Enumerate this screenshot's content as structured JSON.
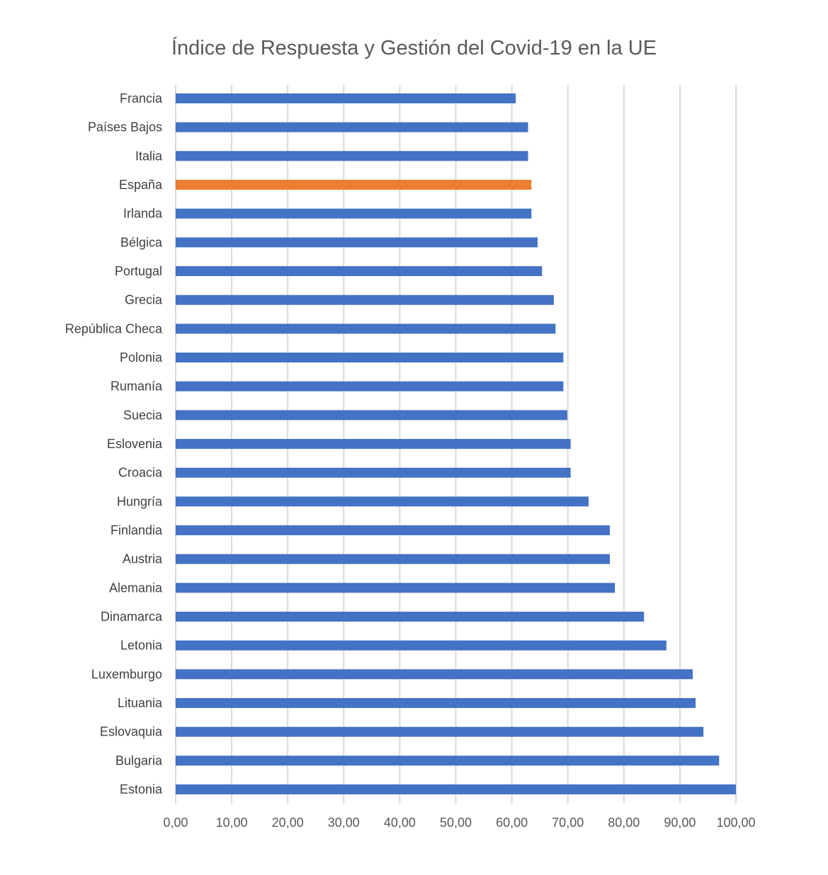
{
  "chart_data": {
    "type": "bar",
    "orientation": "horizontal",
    "title": "Índice de Respuesta y Gestión del Covid-19 en la UE",
    "categories": [
      "Francia",
      "Países Bajos",
      "Italia",
      "España",
      "Irlanda",
      "Bélgica",
      "Portugal",
      "Grecia",
      "República Checa",
      "Polonia",
      "Rumanía",
      "Suecia",
      "Eslovenia",
      "Croacia",
      "Hungría",
      "Finlandia",
      "Austria",
      "Alemania",
      "Dinamarca",
      "Letonia",
      "Luxemburgo",
      "Lituania",
      "Eslovaquia",
      "Bulgaria",
      "Estonia"
    ],
    "values": [
      60.7,
      62.9,
      62.9,
      63.5,
      63.5,
      64.6,
      65.4,
      67.5,
      67.8,
      69.2,
      69.2,
      69.9,
      70.5,
      70.5,
      73.7,
      77.5,
      77.5,
      78.4,
      83.6,
      87.6,
      92.3,
      92.8,
      94.2,
      97.0,
      100.0
    ],
    "xlim": [
      0,
      100
    ],
    "xticks": [
      "0,00",
      "10,00",
      "20,00",
      "30,00",
      "40,00",
      "50,00",
      "60,00",
      "70,00",
      "80,00",
      "90,00",
      "100,00"
    ],
    "grid": true,
    "xlabel": "",
    "ylabel": "",
    "colors": {
      "default": "#4472C4",
      "highlight": "#ED7D31",
      "highlight_category": "España",
      "grid": "#D9D9D9"
    }
  }
}
